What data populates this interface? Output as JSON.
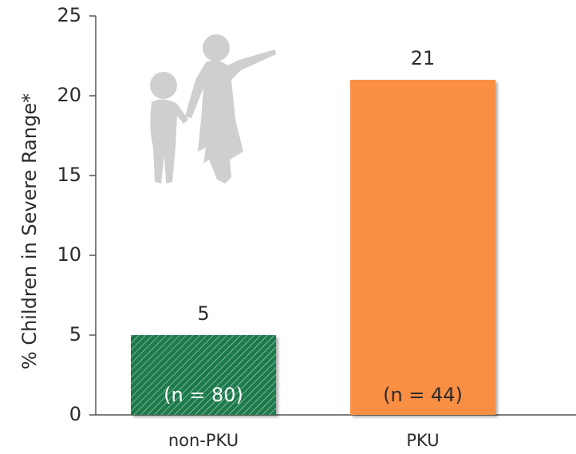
{
  "chart_data": {
    "type": "bar",
    "y_label": "% Children in Severe Range*",
    "categories": [
      "non-PKU",
      "PKU"
    ],
    "values": [
      5,
      21
    ],
    "colors": [
      "#1e7a4c",
      "#f98f42"
    ],
    "hatch": [
      true,
      false
    ],
    "bar_labels": [
      "(n = 80)",
      "(n = 44)"
    ],
    "ylim": [
      0,
      25
    ],
    "yticks": [
      0,
      5,
      10,
      15,
      20,
      25
    ],
    "grid": false
  }
}
